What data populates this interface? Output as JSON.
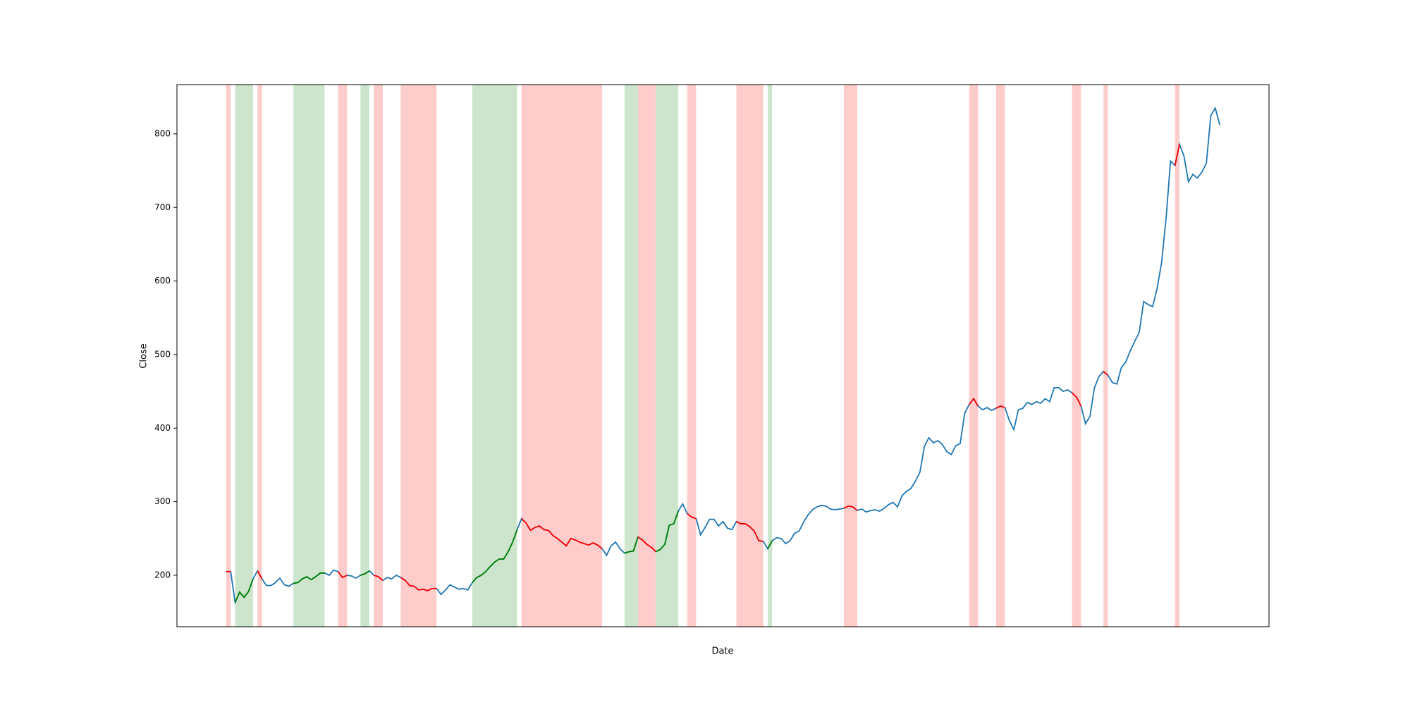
{
  "chart_data": {
    "type": "line",
    "xlabel": "Date",
    "ylabel": "Close",
    "xlim": [
      -11,
      233
    ],
    "ylim": [
      130,
      867
    ],
    "yticks": [
      200,
      300,
      400,
      500,
      600,
      700,
      800
    ],
    "series": [
      {
        "color": "#1f77b4",
        "values": [
          205,
          205,
          163,
          177,
          170,
          178,
          195,
          206,
          195,
          186,
          186,
          190,
          196,
          187,
          185,
          189,
          190,
          195,
          198,
          194,
          198,
          203,
          203,
          200,
          207,
          205,
          197,
          200,
          199,
          196,
          200,
          202,
          206,
          200,
          198,
          193,
          197,
          195,
          200,
          197,
          193,
          186,
          185,
          180,
          181,
          179,
          182,
          182,
          174,
          180,
          187,
          184,
          181,
          182,
          180,
          190,
          197,
          200,
          205,
          212,
          218,
          222,
          222,
          232,
          245,
          262,
          277,
          271,
          261,
          265,
          267,
          262,
          261,
          254,
          250,
          245,
          240,
          250,
          248,
          245,
          243,
          241,
          244,
          241,
          236,
          227,
          240,
          245,
          236,
          230,
          232,
          233,
          252,
          248,
          242,
          238,
          232,
          235,
          242,
          268,
          270,
          287,
          297,
          284,
          279,
          277,
          255,
          265,
          276,
          276,
          267,
          273,
          264,
          262,
          273,
          270,
          270,
          266,
          260,
          247,
          246,
          236,
          247,
          251,
          250,
          243,
          247,
          257,
          260,
          272,
          282,
          289,
          293,
          295,
          294,
          290,
          289,
          290,
          291,
          294,
          293,
          288,
          290,
          286,
          288,
          289,
          287,
          291,
          296,
          299,
          293,
          308,
          314,
          318,
          328,
          340,
          375,
          387,
          380,
          383,
          378,
          368,
          364,
          376,
          379,
          420,
          432,
          440,
          430,
          425,
          428,
          424,
          427,
          430,
          428,
          410,
          398,
          425,
          427,
          435,
          432,
          436,
          434,
          440,
          436,
          455,
          455,
          450,
          452,
          448,
          442,
          430,
          406,
          416,
          455,
          470,
          477,
          472,
          462,
          460,
          482,
          490,
          505,
          518,
          530,
          572,
          568,
          565,
          590,
          625,
          685,
          763,
          757,
          786,
          770,
          735,
          745,
          740,
          748,
          760,
          825,
          835,
          812
        ]
      }
    ],
    "spans": [
      {
        "start": 0,
        "end": 1,
        "color": "#ffcccc",
        "line_color": "red"
      },
      {
        "start": 2,
        "end": 6,
        "color": "#cde5cd",
        "line_color": "green"
      },
      {
        "start": 7,
        "end": 8,
        "color": "#ffcccc",
        "line_color": "red"
      },
      {
        "start": 15,
        "end": 22,
        "color": "#cde5cd",
        "line_color": "green"
      },
      {
        "start": 25,
        "end": 27,
        "color": "#ffcccc",
        "line_color": "red"
      },
      {
        "start": 30,
        "end": 32,
        "color": "#cde5cd",
        "line_color": "green"
      },
      {
        "start": 33,
        "end": 35,
        "color": "#ffcccc",
        "line_color": "red"
      },
      {
        "start": 39,
        "end": 47,
        "color": "#ffcccc",
        "line_color": "red"
      },
      {
        "start": 55,
        "end": 65,
        "color": "#cde5cd",
        "line_color": "green"
      },
      {
        "start": 66,
        "end": 84,
        "color": "#ffcccc",
        "line_color": "red"
      },
      {
        "start": 89,
        "end": 92,
        "color": "#cde5cd",
        "line_color": "green"
      },
      {
        "start": 92,
        "end": 96,
        "color": "#ffcccc",
        "line_color": "red"
      },
      {
        "start": 96,
        "end": 101,
        "color": "#cde5cd",
        "line_color": "green"
      },
      {
        "start": 103,
        "end": 105,
        "color": "#ffcccc",
        "line_color": "red"
      },
      {
        "start": 114,
        "end": 120,
        "color": "#ffcccc",
        "line_color": "red"
      },
      {
        "start": 121,
        "end": 122,
        "color": "#cde5cd",
        "line_color": "green"
      },
      {
        "start": 138,
        "end": 141,
        "color": "#ffcccc",
        "line_color": "red"
      },
      {
        "start": 166,
        "end": 168,
        "color": "#ffcccc",
        "line_color": "red"
      },
      {
        "start": 172,
        "end": 174,
        "color": "#ffcccc",
        "line_color": "red"
      },
      {
        "start": 189,
        "end": 191,
        "color": "#ffcccc",
        "line_color": "red"
      },
      {
        "start": 196,
        "end": 197,
        "color": "#ffcccc",
        "line_color": "red"
      },
      {
        "start": 212,
        "end": 213,
        "color": "#ffcccc",
        "line_color": "red"
      }
    ]
  }
}
